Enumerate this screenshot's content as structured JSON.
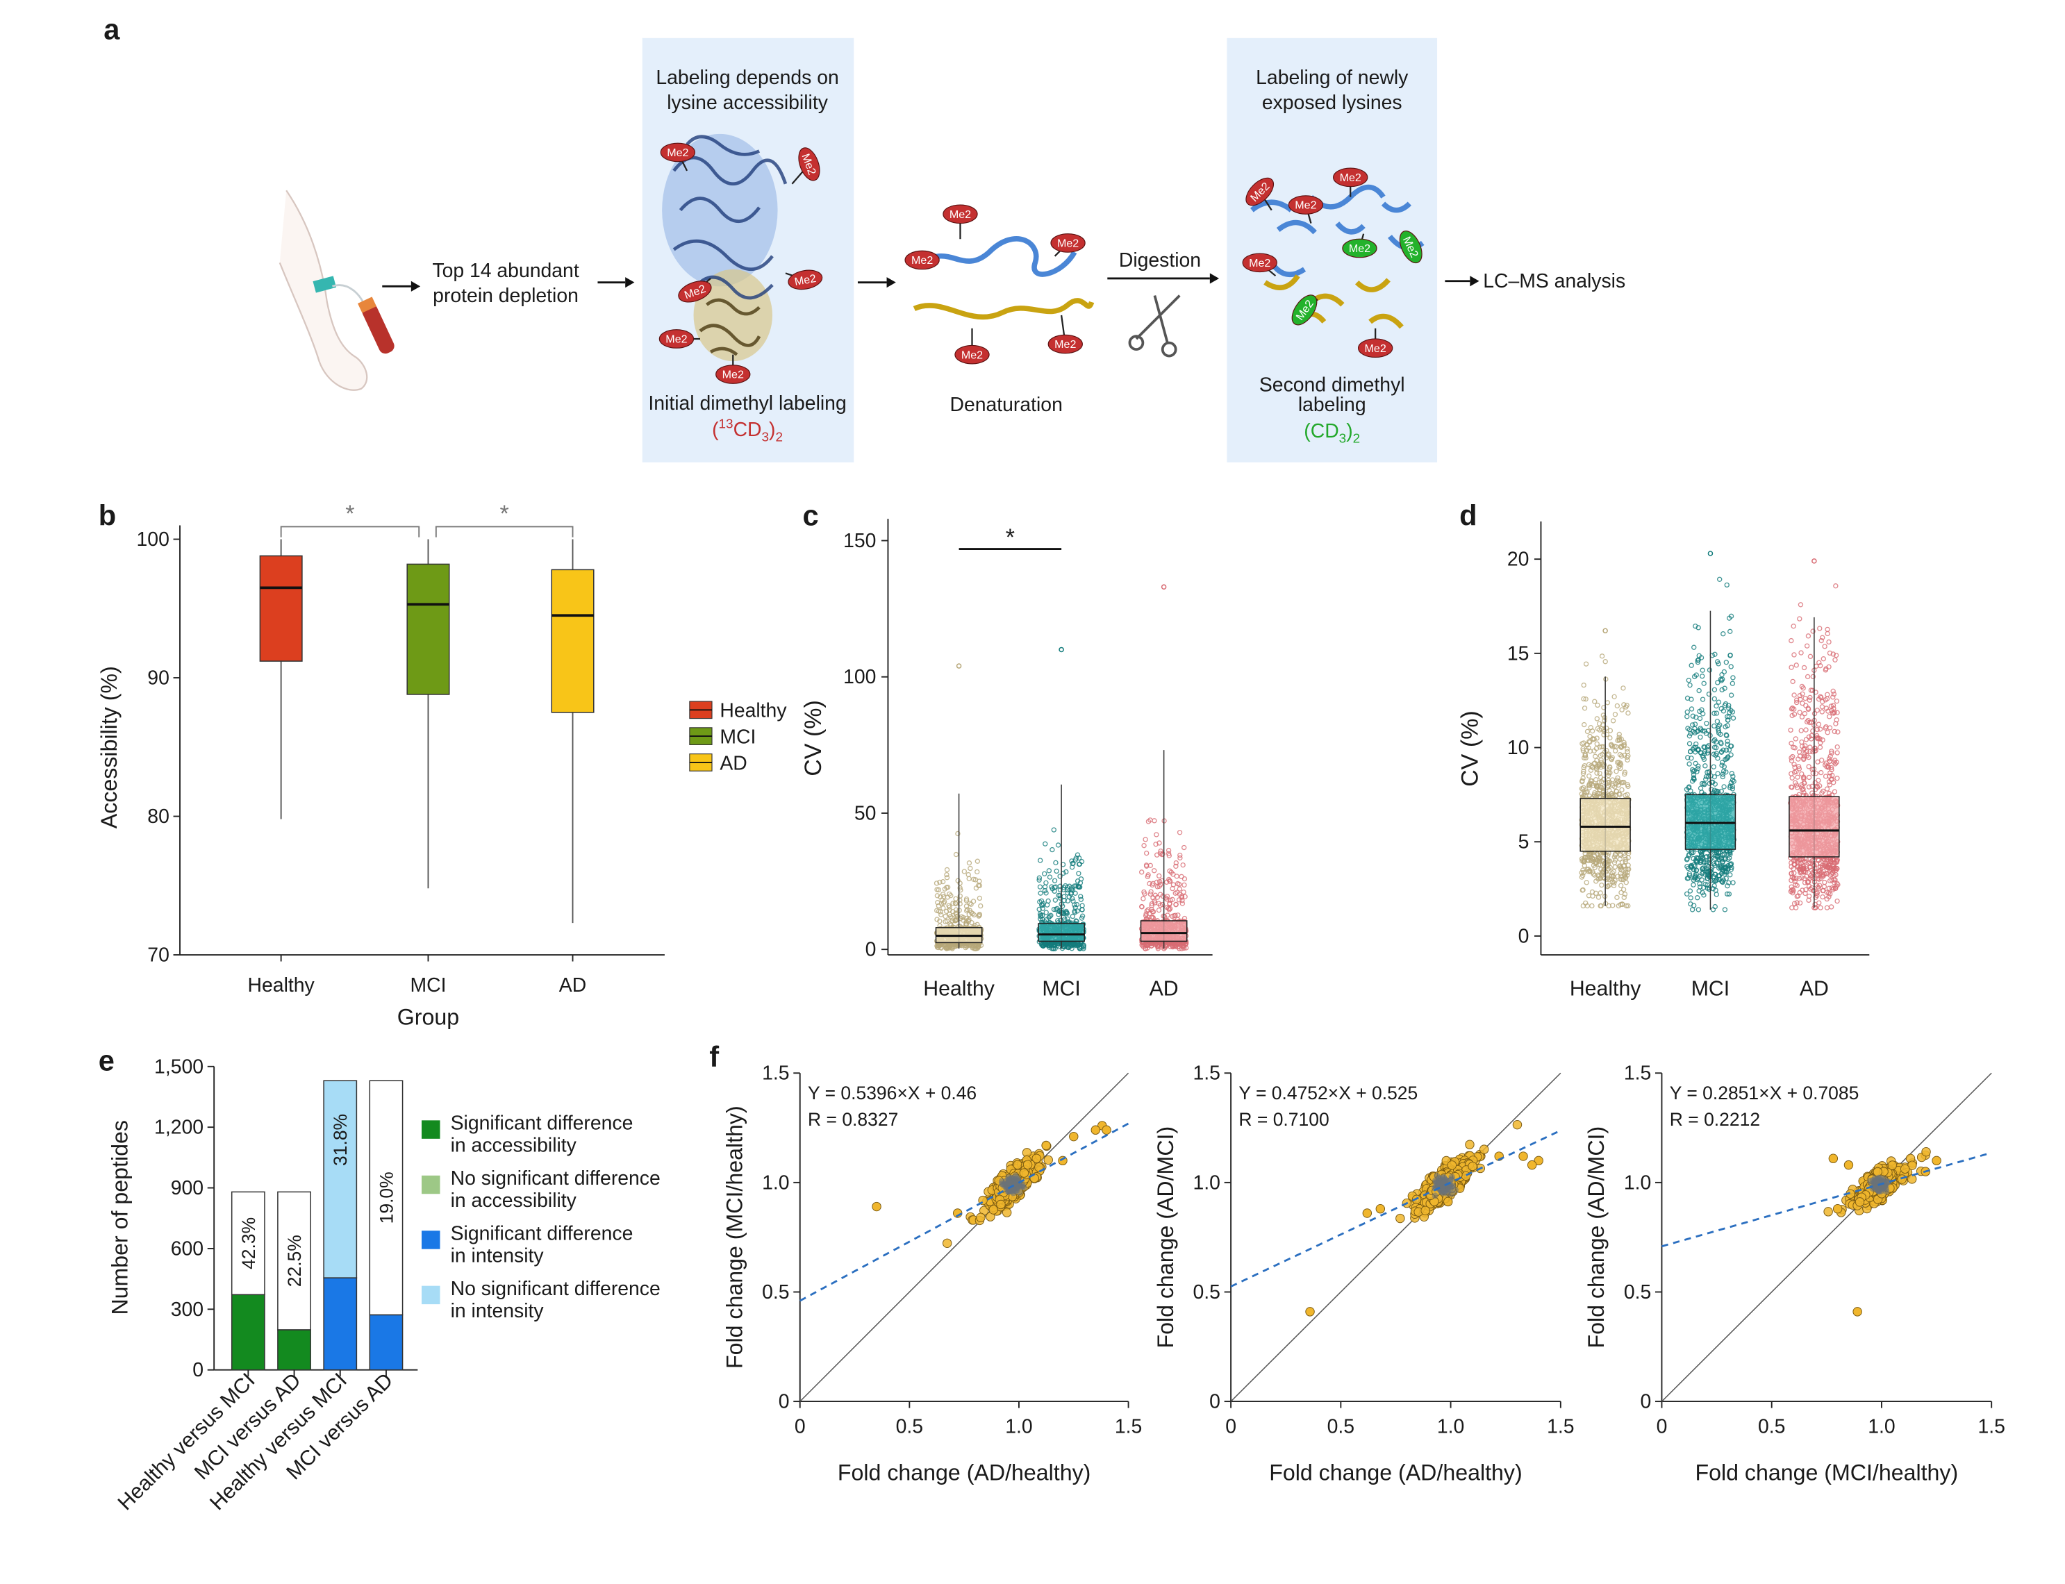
{
  "panel_labels": {
    "a": "a",
    "b": "b",
    "c": "c",
    "d": "d",
    "e": "e",
    "f": "f"
  },
  "workflow": {
    "step1": [
      "Top 14 abundant",
      "protein depletion"
    ],
    "box1_title": [
      "Labeling depends on",
      "lysine accessibility"
    ],
    "box1_caption": "Initial dimethyl labeling",
    "box1_formula": {
      "open": "(",
      "iso": "13",
      "base": "CD",
      "sub3": "3",
      "close": ")",
      "sub2": "2"
    },
    "step3": "Denaturation",
    "step4": "Digestion",
    "box2_title": [
      "Labeling of newly",
      "exposed lysines"
    ],
    "box2_caption": [
      "Second dimethyl",
      "labeling"
    ],
    "box2_formula": {
      "open": "(CD",
      "sub3": "3",
      "close": ")",
      "sub2": "2"
    },
    "final": "LC–MS analysis",
    "tag": "Me2",
    "colors": {
      "box": "#e4effb",
      "tag": "#c43030",
      "tag_green": "#23b22b",
      "chain_blue": "#4a86d6",
      "chain_gold": "#c9a311",
      "formula1": "#c43030",
      "formula2": "#23a82b"
    }
  },
  "chart_data": [
    {
      "id": "b",
      "type": "box",
      "title": "",
      "xlabel": "Group",
      "ylabel": "Accessibility (%)",
      "ylim": [
        70,
        101
      ],
      "yticks": [
        70,
        80,
        90,
        100
      ],
      "categories": [
        "Healthy",
        "MCI",
        "AD"
      ],
      "series": [
        {
          "name": "Healthy",
          "color": "#dc3f1f",
          "min": 79.8,
          "q1": 91.2,
          "median": 96.5,
          "q3": 98.8,
          "max": 100
        },
        {
          "name": "MCI",
          "color": "#6e9a16",
          "min": 74.8,
          "q1": 88.8,
          "median": 95.3,
          "q3": 98.2,
          "max": 100
        },
        {
          "name": "AD",
          "color": "#f8c518",
          "min": 72.3,
          "q1": 87.5,
          "median": 94.5,
          "q3": 97.8,
          "max": 100
        }
      ],
      "significance": [
        {
          "from": "Healthy",
          "to": "MCI",
          "label": "*"
        },
        {
          "from": "MCI",
          "to": "AD",
          "label": "*"
        }
      ],
      "legend": [
        "Healthy",
        "MCI",
        "AD"
      ]
    },
    {
      "id": "c",
      "type": "box",
      "title": "",
      "xlabel": "",
      "ylabel": "CV (%)",
      "ylim": [
        -2,
        158
      ],
      "yticks": [
        0,
        50,
        100,
        150
      ],
      "categories": [
        "Healthy",
        "MCI",
        "AD"
      ],
      "series": [
        {
          "name": "Healthy",
          "color": "#f3e6c0",
          "points": "#b7a779",
          "min": 0.3,
          "q1": 2.5,
          "median": 5.0,
          "q3": 8.0,
          "max": 104
        },
        {
          "name": "MCI",
          "color": "#36b1b1",
          "points": "#137c7c",
          "min": 0.3,
          "q1": 3.0,
          "median": 5.5,
          "q3": 9.5,
          "max": 110
        },
        {
          "name": "AD",
          "color": "#f3a4a8",
          "points": "#d86b73",
          "min": 0.3,
          "q1": 3.0,
          "median": 6.0,
          "q3": 10.5,
          "max": 133
        }
      ],
      "significance": [
        {
          "from": "Healthy",
          "to": "MCI",
          "label": "*"
        }
      ]
    },
    {
      "id": "d",
      "type": "box",
      "title": "",
      "xlabel": "",
      "ylabel": "CV (%)",
      "ylim": [
        -1,
        22
      ],
      "yticks": [
        0,
        5,
        10,
        15,
        20
      ],
      "categories": [
        "Healthy",
        "MCI",
        "AD"
      ],
      "series": [
        {
          "name": "Healthy",
          "color": "#f3e6c0",
          "points": "#b7a779",
          "min": 1.6,
          "q1": 4.5,
          "median": 5.8,
          "q3": 7.3,
          "max": 16.2
        },
        {
          "name": "MCI",
          "color": "#36b1b1",
          "points": "#137c7c",
          "min": 1.4,
          "q1": 4.6,
          "median": 6.0,
          "q3": 7.5,
          "max": 20.3
        },
        {
          "name": "AD",
          "color": "#f3a4a8",
          "points": "#d86b73",
          "min": 1.5,
          "q1": 4.2,
          "median": 5.6,
          "q3": 7.4,
          "max": 19.9
        }
      ]
    },
    {
      "id": "e",
      "type": "bar",
      "title": "",
      "xlabel": "",
      "ylabel": "Number of peptides",
      "ylim": [
        0,
        1500
      ],
      "yticks": [
        0,
        300,
        600,
        900,
        1200,
        1500
      ],
      "ytick_labels": [
        "0",
        "300",
        "600",
        "900",
        "1,200",
        "1,500"
      ],
      "categories": [
        "Healthy versus MCI",
        "MCI versus AD",
        "Healthy versus MCI",
        "MCI versus AD"
      ],
      "series": [
        {
          "name": "Significant",
          "values": [
            372,
            198,
            455,
            272
          ],
          "colors": [
            "#138a1f",
            "#138a1f",
            "#1a78e6",
            "#1a78e6"
          ]
        },
        {
          "name": "Total",
          "values": [
            880,
            880,
            1430,
            1430
          ],
          "colors": [
            "#ffffff",
            "#ffffff",
            "#a7dcf6",
            "#ffffff"
          ]
        }
      ],
      "data_labels": [
        "42.3%",
        "22.5%",
        "31.8%",
        "19.0%"
      ],
      "legend": [
        {
          "lines": [
            "Significant difference",
            "in accessibility"
          ],
          "color": "#138a1f"
        },
        {
          "lines": [
            "No significant difference",
            "in accessibility"
          ],
          "color": "#9dc886"
        },
        {
          "lines": [
            "Significant difference",
            "in intensity"
          ],
          "color": "#1a78e6"
        },
        {
          "lines": [
            "No significant difference",
            "in intensity"
          ],
          "color": "#a7dcf6"
        }
      ]
    },
    {
      "id": "f1",
      "type": "scatter",
      "title": "",
      "xlabel": "Fold change (AD/healthy)",
      "ylabel": "Fold change (MCI/healthy)",
      "xlim": [
        0,
        1.5
      ],
      "ylim": [
        0,
        1.5
      ],
      "xticks": [
        0,
        0.5,
        1.0,
        1.5
      ],
      "xtick_labels": [
        "0",
        "0.5",
        "1.0",
        "1.5"
      ],
      "yticks": [
        0,
        0.5,
        1.0,
        1.5
      ],
      "ytick_labels": [
        "0",
        "0.5",
        "1.0",
        "1.5"
      ],
      "slope": 0.5396,
      "intercept": 0.46,
      "equation": "Y = 0.5396×X + 0.46",
      "r_label": "R = 0.8327",
      "center": [
        0.97,
        0.99
      ],
      "spread": 0.04,
      "outliers": [
        [
          0.35,
          0.89
        ],
        [
          1.38,
          1.26
        ],
        [
          1.4,
          1.24
        ],
        [
          1.35,
          1.24
        ],
        [
          1.25,
          1.21
        ],
        [
          0.72,
          0.86
        ],
        [
          1.2,
          1.1
        ]
      ]
    },
    {
      "id": "f2",
      "type": "scatter",
      "title": "",
      "xlabel": "Fold change (AD/healthy)",
      "ylabel": "Fold change (AD/MCI)",
      "xlim": [
        0,
        1.5
      ],
      "ylim": [
        0,
        1.5
      ],
      "xticks": [
        0,
        0.5,
        1.0,
        1.5
      ],
      "xtick_labels": [
        "0",
        "0.5",
        "1.0",
        "1.5"
      ],
      "yticks": [
        0,
        0.5,
        1.0,
        1.5
      ],
      "ytick_labels": [
        "0",
        "0.5",
        "1.0",
        "1.5"
      ],
      "slope": 0.4752,
      "intercept": 0.525,
      "equation": "Y = 0.4752×X + 0.525",
      "r_label": "R = 0.7100",
      "center": [
        0.97,
        0.99
      ],
      "spread": 0.04,
      "outliers": [
        [
          0.36,
          0.41
        ],
        [
          1.4,
          1.1
        ],
        [
          1.37,
          1.08
        ],
        [
          1.33,
          1.12
        ],
        [
          1.22,
          1.12
        ],
        [
          0.62,
          0.86
        ],
        [
          0.68,
          0.88
        ]
      ]
    },
    {
      "id": "f3",
      "type": "scatter",
      "title": "",
      "xlabel": "Fold change (MCI/healthy)",
      "ylabel": "Fold change (AD/MCI)",
      "xlim": [
        0,
        1.5
      ],
      "ylim": [
        0,
        1.5
      ],
      "xticks": [
        0,
        0.5,
        1.0,
        1.5
      ],
      "xtick_labels": [
        "0",
        "0.5",
        "1.0",
        "1.5"
      ],
      "yticks": [
        0,
        0.5,
        1.0,
        1.5
      ],
      "ytick_labels": [
        "0",
        "0.5",
        "1.0",
        "1.5"
      ],
      "slope": 0.2851,
      "intercept": 0.7085,
      "equation": "Y = 0.2851×X + 0.7085",
      "r_label": "R = 0.2212",
      "center": [
        0.99,
        0.99
      ],
      "spread": 0.035,
      "outliers": [
        [
          0.89,
          0.41
        ],
        [
          1.25,
          1.1
        ],
        [
          0.78,
          1.11
        ],
        [
          0.8,
          0.88
        ],
        [
          1.2,
          1.05
        ],
        [
          0.85,
          1.08
        ]
      ]
    }
  ]
}
